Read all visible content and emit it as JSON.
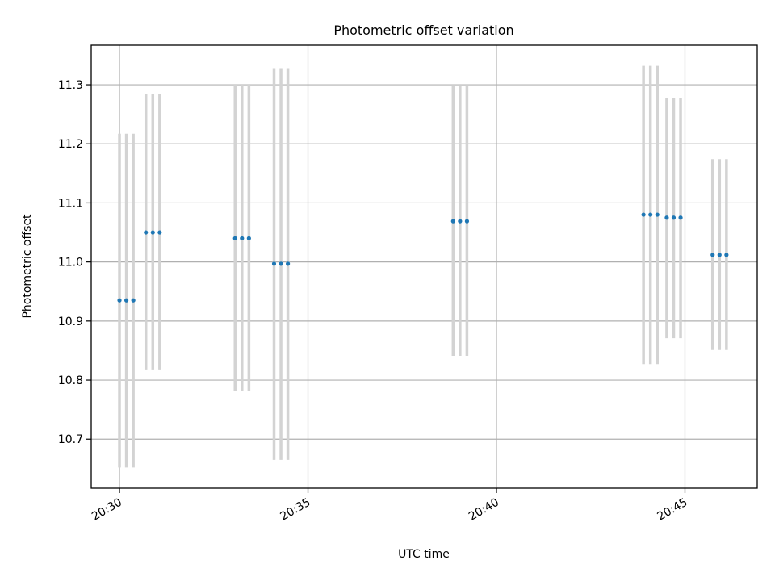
{
  "chart_data": {
    "type": "scatter",
    "title": "Photometric offset variation",
    "xlabel": "UTC time",
    "ylabel": "Photometric offset",
    "x_axis": {
      "kind": "time",
      "range": [
        "20:29:15",
        "20:46:55"
      ],
      "ticks": [
        "20:30",
        "20:35",
        "20:40",
        "20:45"
      ]
    },
    "y_axis": {
      "range": [
        10.617,
        11.367
      ],
      "ticks": [
        10.7,
        10.8,
        10.9,
        11.0,
        11.1,
        11.2,
        11.3
      ],
      "tick_labels": [
        "10.7",
        "10.8",
        "10.9",
        "11.0",
        "11.1",
        "11.2",
        "11.3"
      ]
    },
    "grid": true,
    "colors": {
      "points": "#1f77b4",
      "errorbars": "#d3d3d3",
      "grid": "#b0b0b0"
    },
    "series": [
      {
        "points": [
          {
            "x": "20:30:00",
            "y": 10.935,
            "ylow": 10.652,
            "yhigh": 11.217
          },
          {
            "x": "20:30:11",
            "y": 10.935,
            "ylow": 10.652,
            "yhigh": 11.217
          },
          {
            "x": "20:30:22",
            "y": 10.935,
            "ylow": 10.652,
            "yhigh": 11.217
          },
          {
            "x": "20:30:42",
            "y": 11.05,
            "ylow": 10.818,
            "yhigh": 11.284
          },
          {
            "x": "20:30:53",
            "y": 11.05,
            "ylow": 10.818,
            "yhigh": 11.284
          },
          {
            "x": "20:31:04",
            "y": 11.05,
            "ylow": 10.818,
            "yhigh": 11.284
          },
          {
            "x": "20:33:04",
            "y": 11.04,
            "ylow": 10.782,
            "yhigh": 11.3
          },
          {
            "x": "20:33:15",
            "y": 11.04,
            "ylow": 10.782,
            "yhigh": 11.3
          },
          {
            "x": "20:33:26",
            "y": 11.04,
            "ylow": 10.782,
            "yhigh": 11.3
          },
          {
            "x": "20:34:06",
            "y": 10.997,
            "ylow": 10.665,
            "yhigh": 11.328
          },
          {
            "x": "20:34:17",
            "y": 10.997,
            "ylow": 10.665,
            "yhigh": 11.328
          },
          {
            "x": "20:34:28",
            "y": 10.997,
            "ylow": 10.665,
            "yhigh": 11.328
          },
          {
            "x": "20:38:51",
            "y": 11.069,
            "ylow": 10.841,
            "yhigh": 11.298
          },
          {
            "x": "20:39:02",
            "y": 11.069,
            "ylow": 10.841,
            "yhigh": 11.298
          },
          {
            "x": "20:39:13",
            "y": 11.069,
            "ylow": 10.841,
            "yhigh": 11.298
          },
          {
            "x": "20:43:54",
            "y": 11.08,
            "ylow": 10.827,
            "yhigh": 11.332
          },
          {
            "x": "20:44:05",
            "y": 11.08,
            "ylow": 10.827,
            "yhigh": 11.332
          },
          {
            "x": "20:44:16",
            "y": 11.08,
            "ylow": 10.827,
            "yhigh": 11.332
          },
          {
            "x": "20:44:31",
            "y": 11.075,
            "ylow": 10.871,
            "yhigh": 11.278
          },
          {
            "x": "20:44:42",
            "y": 11.075,
            "ylow": 10.871,
            "yhigh": 11.278
          },
          {
            "x": "20:44:53",
            "y": 11.075,
            "ylow": 10.871,
            "yhigh": 11.278
          },
          {
            "x": "20:45:44",
            "y": 11.012,
            "ylow": 10.851,
            "yhigh": 11.174
          },
          {
            "x": "20:45:55",
            "y": 11.012,
            "ylow": 10.851,
            "yhigh": 11.174
          },
          {
            "x": "20:46:06",
            "y": 11.012,
            "ylow": 10.851,
            "yhigh": 11.174
          }
        ]
      }
    ]
  }
}
